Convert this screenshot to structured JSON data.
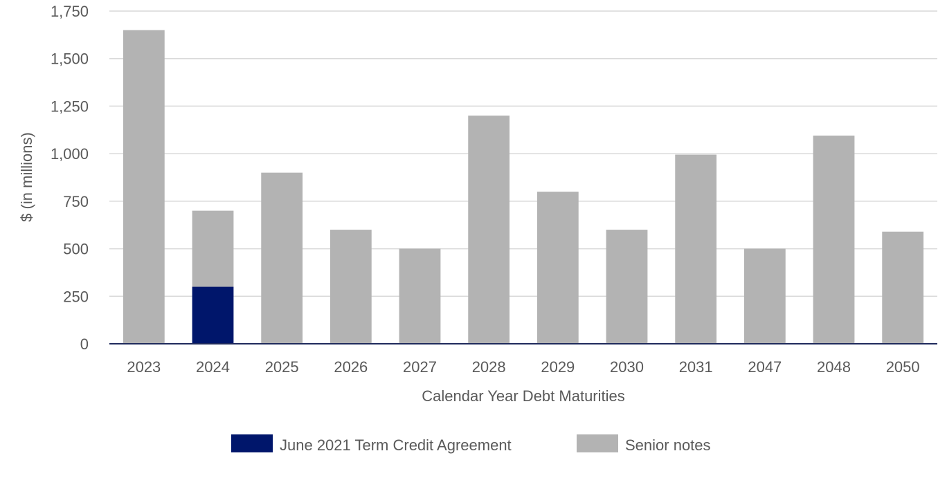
{
  "chart_data": {
    "type": "bar",
    "stacked": true,
    "title": "",
    "xlabel": "Calendar Year Debt Maturities",
    "ylabel": "$ (in millions)",
    "ylim": [
      0,
      1750
    ],
    "yticks": [
      0,
      250,
      500,
      750,
      1000,
      1250,
      1500,
      1750
    ],
    "ytick_labels": [
      "0",
      "250",
      "500",
      "750",
      "1,000",
      "1,250",
      "1,500",
      "1,750"
    ],
    "grid": true,
    "legend_position": "bottom",
    "categories": [
      "2023",
      "2024",
      "2025",
      "2026",
      "2027",
      "2028",
      "2029",
      "2030",
      "2031",
      "2047",
      "2048",
      "2050"
    ],
    "series": [
      {
        "name": "June 2021 Term Credit Agreement",
        "color": "#00166b",
        "values": [
          0,
          300,
          0,
          0,
          0,
          0,
          0,
          0,
          0,
          0,
          0,
          0
        ]
      },
      {
        "name": "Senior notes",
        "color": "#b3b3b3",
        "values": [
          1650,
          400,
          900,
          600,
          500,
          1200,
          800,
          600,
          995,
          500,
          1095,
          590
        ]
      }
    ]
  }
}
